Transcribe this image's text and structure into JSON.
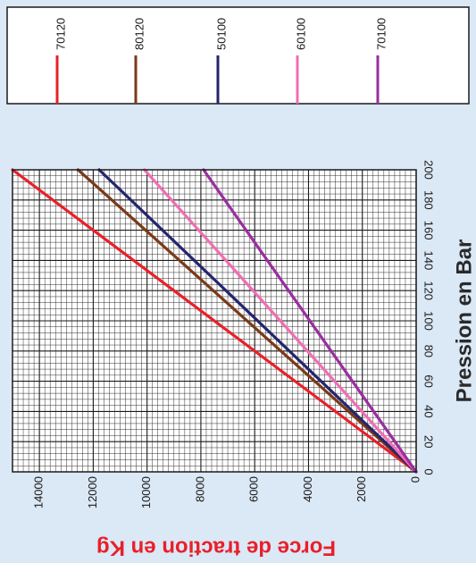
{
  "chart_data": {
    "type": "line",
    "xlabel": "Pression en Bar",
    "ylabel": "Force de traction en Kg",
    "xlim": [
      0,
      200
    ],
    "ylim": [
      0,
      15000
    ],
    "x_ticks": [
      "0",
      "20",
      "40",
      "60",
      "80",
      "100",
      "120",
      "140",
      "160",
      "180",
      "200"
    ],
    "y_ticks": [
      "0",
      "2000",
      "4000",
      "6000",
      "8000",
      "10000",
      "12000",
      "14000"
    ],
    "grid": true,
    "legend_position": "top",
    "series": [
      {
        "name": "70120",
        "color": "#e8202a",
        "x": [
          0,
          200
        ],
        "y": [
          0,
          15000
        ]
      },
      {
        "name": "80120",
        "color": "#7a3a18",
        "x": [
          0,
          200
        ],
        "y": [
          0,
          12566
        ]
      },
      {
        "name": "50100",
        "color": "#25256e",
        "x": [
          0,
          200
        ],
        "y": [
          0,
          11780
        ]
      },
      {
        "name": "60100",
        "color": "#f06eb4",
        "x": [
          0,
          200
        ],
        "y": [
          0,
          10100
        ]
      },
      {
        "name": "70100",
        "color": "#9a2ea0",
        "x": [
          0,
          200
        ],
        "y": [
          0,
          7900
        ]
      }
    ]
  }
}
